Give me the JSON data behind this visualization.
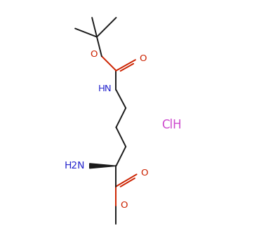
{
  "bg_color": "#ffffff",
  "bond_color": "#1a1a1a",
  "N_color": "#2222cc",
  "O_color": "#cc2200",
  "HCl_color": "#cc44cc",
  "figsize": [
    3.79,
    3.49
  ],
  "dpi": 100,
  "HCl_text": "ClH",
  "NH_text": "HN",
  "NH2_text": "H2N",
  "O_text": "O",
  "lw": 1.4,
  "fs": 9.5
}
